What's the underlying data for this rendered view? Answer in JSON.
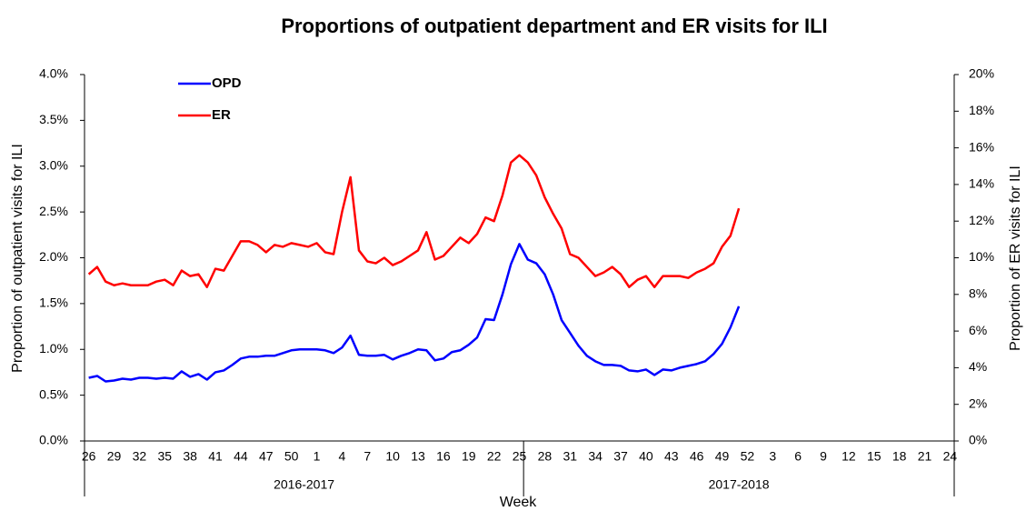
{
  "chart_data": {
    "type": "line",
    "title": "Proportions of outpatient department and ER visits for ILI",
    "xlabel": "Week",
    "ylabel": "Proportion of outpatient visits for ILI",
    "y2label": "Proportion of ER visits for ILI",
    "x_groups": [
      "2016-2017",
      "2017-2018"
    ],
    "categories": [
      "26",
      null,
      null,
      "29",
      null,
      null,
      "32",
      null,
      null,
      "35",
      null,
      null,
      "38",
      null,
      null,
      "41",
      null,
      null,
      "44",
      null,
      null,
      "47",
      null,
      null,
      "50",
      null,
      null,
      "1",
      null,
      null,
      "4",
      null,
      null,
      "7",
      null,
      null,
      "10",
      null,
      null,
      "13",
      null,
      null,
      "16",
      null,
      null,
      "19",
      null,
      null,
      "22",
      null,
      null,
      "25",
      null,
      null,
      "28",
      null,
      null,
      "31",
      null,
      null,
      "34",
      null,
      null,
      "37",
      null,
      null,
      "40",
      null,
      null,
      "43",
      null,
      null,
      "46",
      null,
      null,
      "49",
      null,
      null,
      "52",
      null,
      null,
      "3",
      null,
      null,
      "6",
      null,
      null,
      "9",
      null,
      null,
      "12",
      null,
      null,
      "15",
      null,
      null,
      "18",
      null,
      null,
      "21",
      null,
      null,
      "24"
    ],
    "series": [
      {
        "name": "OPD",
        "color": "#0000ff",
        "values": [
          0.69,
          0.71,
          0.65,
          0.66,
          0.68,
          0.67,
          0.69,
          0.69,
          0.68,
          0.69,
          0.68,
          0.76,
          0.7,
          0.73,
          0.67,
          0.75,
          0.77,
          0.83,
          0.9,
          0.92,
          0.92,
          0.93,
          0.93,
          0.96,
          0.99,
          1.0,
          1.0,
          1.0,
          0.99,
          0.96,
          1.02,
          1.15,
          0.94,
          0.93,
          0.93,
          0.94,
          0.89,
          0.93,
          0.96,
          1.0,
          0.99,
          0.88,
          0.9,
          0.97,
          0.99,
          1.05,
          1.13,
          1.33,
          1.32,
          1.6,
          1.93,
          2.15,
          1.98,
          1.94,
          1.82,
          1.6,
          1.32,
          1.18,
          1.04,
          0.93,
          0.87,
          0.83,
          0.83,
          0.82,
          0.77,
          0.76,
          0.78,
          0.72,
          0.78,
          0.77,
          0.8,
          0.82,
          0.84,
          0.87,
          0.95,
          1.06,
          1.24,
          1.47,
          null,
          null,
          null,
          null,
          null,
          null,
          null,
          null,
          null,
          null,
          null,
          null,
          null,
          null,
          null,
          null,
          null,
          null,
          null,
          null,
          null,
          null,
          null,
          null,
          null
        ]
      },
      {
        "name": "ER",
        "color": "#ff0000",
        "axis": "y2",
        "values": [
          9.1,
          9.5,
          8.7,
          8.5,
          8.6,
          8.5,
          8.5,
          8.5,
          8.7,
          8.8,
          8.5,
          9.3,
          9.0,
          9.1,
          8.4,
          9.4,
          9.3,
          10.1,
          10.9,
          10.9,
          10.7,
          10.3,
          10.7,
          10.6,
          10.8,
          10.7,
          10.6,
          10.8,
          10.3,
          10.2,
          12.5,
          14.4,
          10.4,
          9.8,
          9.7,
          10.0,
          9.6,
          9.8,
          10.1,
          10.4,
          11.4,
          9.9,
          10.1,
          10.6,
          11.1,
          10.8,
          11.3,
          12.2,
          12.0,
          13.4,
          15.2,
          15.6,
          15.2,
          14.5,
          13.3,
          12.4,
          11.6,
          10.2,
          10.0,
          9.5,
          9.0,
          9.2,
          9.5,
          9.1,
          8.4,
          8.8,
          9.0,
          8.4,
          9.0,
          9.0,
          9.0,
          8.9,
          9.2,
          9.4,
          9.7,
          10.6,
          11.2,
          12.7,
          null,
          null,
          null,
          null,
          null,
          null,
          null,
          null,
          null,
          null,
          null,
          null,
          null,
          null,
          null,
          null,
          null,
          null,
          null,
          null,
          null,
          null,
          null,
          null,
          null
        ]
      }
    ],
    "ylim": [
      0,
      4
    ],
    "yticks": [
      {
        "value": 0,
        "label": "0.0%"
      },
      {
        "value": 0.5,
        "label": "0.5%"
      },
      {
        "value": 1,
        "label": "1.0%"
      },
      {
        "value": 1.5,
        "label": "1.5%"
      },
      {
        "value": 2,
        "label": "2.0%"
      },
      {
        "value": 2.5,
        "label": "2.5%"
      },
      {
        "value": 3,
        "label": "3.0%"
      },
      {
        "value": 3.5,
        "label": "3.5%"
      },
      {
        "value": 4,
        "label": "4.0%"
      }
    ],
    "y2lim": [
      0,
      20
    ],
    "y2ticks": [
      {
        "value": 0,
        "label": "0%"
      },
      {
        "value": 2,
        "label": "2%"
      },
      {
        "value": 4,
        "label": "4%"
      },
      {
        "value": 6,
        "label": "6%"
      },
      {
        "value": 8,
        "label": "8%"
      },
      {
        "value": 10,
        "label": "10%"
      },
      {
        "value": 12,
        "label": "12%"
      },
      {
        "value": 14,
        "label": "14%"
      },
      {
        "value": 16,
        "label": "16%"
      },
      {
        "value": 18,
        "label": "18%"
      },
      {
        "value": 20,
        "label": "20%"
      }
    ],
    "legend": "top-left"
  }
}
